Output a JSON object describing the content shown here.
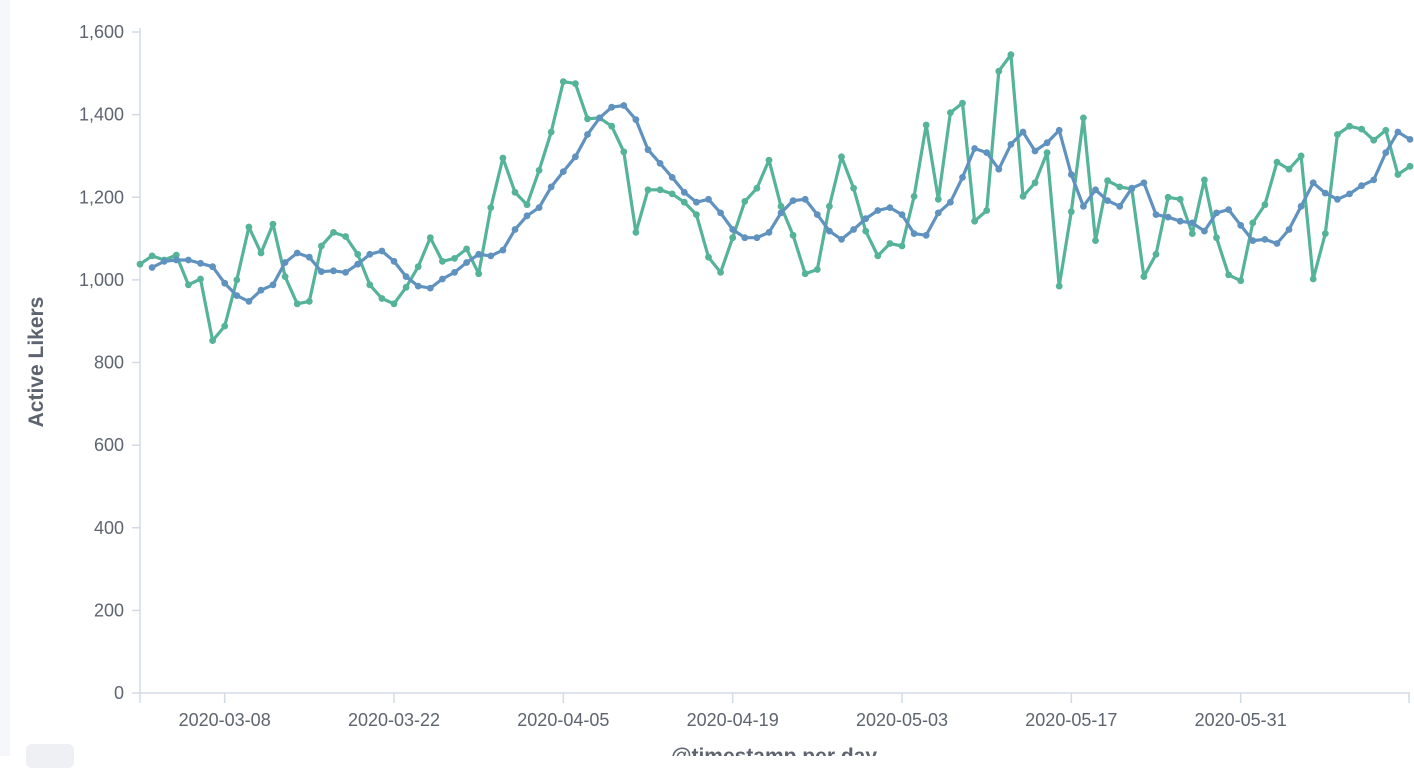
{
  "chart_data": {
    "type": "line",
    "xlabel": "@timestamp per day",
    "ylabel": "Active Likers",
    "ylim": [
      0,
      1600
    ],
    "y_ticks": [
      0,
      200,
      400,
      600,
      800,
      1000,
      1200,
      1400,
      1600
    ],
    "y_tick_labels": [
      "0",
      "200",
      "400",
      "600",
      "800",
      "1,000",
      "1,200",
      "1,400",
      "1,600"
    ],
    "x_range": [
      "2020-03-01",
      "2020-06-14"
    ],
    "x_ticks": [
      "2020-03-08",
      "2020-03-22",
      "2020-04-05",
      "2020-04-19",
      "2020-05-03",
      "2020-05-17",
      "2020-05-31"
    ],
    "grid": false,
    "legend": "none",
    "series": [
      {
        "color": "#54b399",
        "points": [
          [
            "2020-03-01",
            1038
          ],
          [
            "2020-03-02",
            1058
          ],
          [
            "2020-03-03",
            1048
          ],
          [
            "2020-03-04",
            1060
          ],
          [
            "2020-03-05",
            988
          ],
          [
            "2020-03-06",
            1002
          ],
          [
            "2020-03-07",
            853
          ],
          [
            "2020-03-08",
            888
          ],
          [
            "2020-03-09",
            1000
          ],
          [
            "2020-03-10",
            1128
          ],
          [
            "2020-03-11",
            1065
          ],
          [
            "2020-03-12",
            1135
          ],
          [
            "2020-03-13",
            1008
          ],
          [
            "2020-03-14",
            942
          ],
          [
            "2020-03-15",
            948
          ],
          [
            "2020-03-16",
            1082
          ],
          [
            "2020-03-17",
            1115
          ],
          [
            "2020-03-18",
            1105
          ],
          [
            "2020-03-19",
            1062
          ],
          [
            "2020-03-20",
            988
          ],
          [
            "2020-03-21",
            955
          ],
          [
            "2020-03-22",
            942
          ],
          [
            "2020-03-23",
            982
          ],
          [
            "2020-03-24",
            1032
          ],
          [
            "2020-03-25",
            1102
          ],
          [
            "2020-03-26",
            1045
          ],
          [
            "2020-03-27",
            1052
          ],
          [
            "2020-03-28",
            1075
          ],
          [
            "2020-03-29",
            1015
          ],
          [
            "2020-03-30",
            1175
          ],
          [
            "2020-03-31",
            1295
          ],
          [
            "2020-04-01",
            1212
          ],
          [
            "2020-04-02",
            1182
          ],
          [
            "2020-04-03",
            1265
          ],
          [
            "2020-04-04",
            1358
          ],
          [
            "2020-04-05",
            1480
          ],
          [
            "2020-04-06",
            1475
          ],
          [
            "2020-04-07",
            1390
          ],
          [
            "2020-04-08",
            1392
          ],
          [
            "2020-04-09",
            1372
          ],
          [
            "2020-04-10",
            1310
          ],
          [
            "2020-04-11",
            1115
          ],
          [
            "2020-04-12",
            1218
          ],
          [
            "2020-04-13",
            1218
          ],
          [
            "2020-04-14",
            1208
          ],
          [
            "2020-04-15",
            1188
          ],
          [
            "2020-04-16",
            1158
          ],
          [
            "2020-04-17",
            1055
          ],
          [
            "2020-04-18",
            1018
          ],
          [
            "2020-04-19",
            1102
          ],
          [
            "2020-04-20",
            1190
          ],
          [
            "2020-04-21",
            1222
          ],
          [
            "2020-04-22",
            1290
          ],
          [
            "2020-04-23",
            1178
          ],
          [
            "2020-04-24",
            1108
          ],
          [
            "2020-04-25",
            1015
          ],
          [
            "2020-04-26",
            1025
          ],
          [
            "2020-04-27",
            1178
          ],
          [
            "2020-04-28",
            1298
          ],
          [
            "2020-04-29",
            1222
          ],
          [
            "2020-04-30",
            1118
          ],
          [
            "2020-05-01",
            1058
          ],
          [
            "2020-05-02",
            1088
          ],
          [
            "2020-05-03",
            1082
          ],
          [
            "2020-05-04",
            1202
          ],
          [
            "2020-05-05",
            1375
          ],
          [
            "2020-05-06",
            1195
          ],
          [
            "2020-05-07",
            1405
          ],
          [
            "2020-05-08",
            1428
          ],
          [
            "2020-05-09",
            1142
          ],
          [
            "2020-05-10",
            1168
          ],
          [
            "2020-05-11",
            1505
          ],
          [
            "2020-05-12",
            1545
          ],
          [
            "2020-05-13",
            1202
          ],
          [
            "2020-05-14",
            1235
          ],
          [
            "2020-05-15",
            1308
          ],
          [
            "2020-05-16",
            985
          ],
          [
            "2020-05-17",
            1165
          ],
          [
            "2020-05-18",
            1392
          ],
          [
            "2020-05-19",
            1095
          ],
          [
            "2020-05-20",
            1240
          ],
          [
            "2020-05-21",
            1225
          ],
          [
            "2020-05-22",
            1220
          ],
          [
            "2020-05-23",
            1008
          ],
          [
            "2020-05-24",
            1062
          ],
          [
            "2020-05-25",
            1200
          ],
          [
            "2020-05-26",
            1195
          ],
          [
            "2020-05-27",
            1112
          ],
          [
            "2020-05-28",
            1242
          ],
          [
            "2020-05-29",
            1102
          ],
          [
            "2020-05-30",
            1012
          ],
          [
            "2020-05-31",
            998
          ],
          [
            "2020-06-01",
            1138
          ],
          [
            "2020-06-02",
            1182
          ],
          [
            "2020-06-03",
            1285
          ],
          [
            "2020-06-04",
            1268
          ],
          [
            "2020-06-05",
            1300
          ],
          [
            "2020-06-06",
            1002
          ],
          [
            "2020-06-07",
            1112
          ],
          [
            "2020-06-08",
            1352
          ],
          [
            "2020-06-09",
            1372
          ],
          [
            "2020-06-10",
            1365
          ],
          [
            "2020-06-11",
            1338
          ],
          [
            "2020-06-12",
            1362
          ],
          [
            "2020-06-13",
            1255
          ],
          [
            "2020-06-14",
            1275
          ]
        ]
      },
      {
        "color": "#6092c0",
        "points": [
          [
            "2020-03-02",
            1030
          ],
          [
            "2020-03-03",
            1045
          ],
          [
            "2020-03-04",
            1048
          ],
          [
            "2020-03-05",
            1048
          ],
          [
            "2020-03-06",
            1040
          ],
          [
            "2020-03-07",
            1032
          ],
          [
            "2020-03-08",
            992
          ],
          [
            "2020-03-09",
            962
          ],
          [
            "2020-03-10",
            948
          ],
          [
            "2020-03-11",
            975
          ],
          [
            "2020-03-12",
            988
          ],
          [
            "2020-03-13",
            1042
          ],
          [
            "2020-03-14",
            1065
          ],
          [
            "2020-03-15",
            1055
          ],
          [
            "2020-03-16",
            1020
          ],
          [
            "2020-03-17",
            1022
          ],
          [
            "2020-03-18",
            1018
          ],
          [
            "2020-03-19",
            1038
          ],
          [
            "2020-03-20",
            1062
          ],
          [
            "2020-03-21",
            1070
          ],
          [
            "2020-03-22",
            1045
          ],
          [
            "2020-03-23",
            1008
          ],
          [
            "2020-03-24",
            985
          ],
          [
            "2020-03-25",
            980
          ],
          [
            "2020-03-26",
            1002
          ],
          [
            "2020-03-27",
            1018
          ],
          [
            "2020-03-28",
            1042
          ],
          [
            "2020-03-29",
            1062
          ],
          [
            "2020-03-30",
            1058
          ],
          [
            "2020-03-31",
            1072
          ],
          [
            "2020-04-01",
            1122
          ],
          [
            "2020-04-02",
            1155
          ],
          [
            "2020-04-03",
            1175
          ],
          [
            "2020-04-04",
            1225
          ],
          [
            "2020-04-05",
            1262
          ],
          [
            "2020-04-06",
            1298
          ],
          [
            "2020-04-07",
            1352
          ],
          [
            "2020-04-08",
            1392
          ],
          [
            "2020-04-09",
            1418
          ],
          [
            "2020-04-10",
            1422
          ],
          [
            "2020-04-11",
            1388
          ],
          [
            "2020-04-12",
            1315
          ],
          [
            "2020-04-13",
            1282
          ],
          [
            "2020-04-14",
            1248
          ],
          [
            "2020-04-15",
            1212
          ],
          [
            "2020-04-16",
            1188
          ],
          [
            "2020-04-17",
            1195
          ],
          [
            "2020-04-18",
            1162
          ],
          [
            "2020-04-19",
            1122
          ],
          [
            "2020-04-20",
            1102
          ],
          [
            "2020-04-21",
            1102
          ],
          [
            "2020-04-22",
            1115
          ],
          [
            "2020-04-23",
            1162
          ],
          [
            "2020-04-24",
            1192
          ],
          [
            "2020-04-25",
            1195
          ],
          [
            "2020-04-26",
            1158
          ],
          [
            "2020-04-27",
            1118
          ],
          [
            "2020-04-28",
            1098
          ],
          [
            "2020-04-29",
            1122
          ],
          [
            "2020-04-30",
            1148
          ],
          [
            "2020-05-01",
            1168
          ],
          [
            "2020-05-02",
            1175
          ],
          [
            "2020-05-03",
            1158
          ],
          [
            "2020-05-04",
            1112
          ],
          [
            "2020-05-05",
            1108
          ],
          [
            "2020-05-06",
            1162
          ],
          [
            "2020-05-07",
            1188
          ],
          [
            "2020-05-08",
            1248
          ],
          [
            "2020-05-09",
            1318
          ],
          [
            "2020-05-10",
            1308
          ],
          [
            "2020-05-11",
            1268
          ],
          [
            "2020-05-12",
            1328
          ],
          [
            "2020-05-13",
            1358
          ],
          [
            "2020-05-14",
            1312
          ],
          [
            "2020-05-15",
            1332
          ],
          [
            "2020-05-16",
            1362
          ],
          [
            "2020-05-17",
            1255
          ],
          [
            "2020-05-18",
            1178
          ],
          [
            "2020-05-19",
            1218
          ],
          [
            "2020-05-20",
            1192
          ],
          [
            "2020-05-21",
            1178
          ],
          [
            "2020-05-22",
            1222
          ],
          [
            "2020-05-23",
            1235
          ],
          [
            "2020-05-24",
            1158
          ],
          [
            "2020-05-25",
            1152
          ],
          [
            "2020-05-26",
            1142
          ],
          [
            "2020-05-27",
            1138
          ],
          [
            "2020-05-28",
            1118
          ],
          [
            "2020-05-29",
            1162
          ],
          [
            "2020-05-30",
            1170
          ],
          [
            "2020-05-31",
            1132
          ],
          [
            "2020-06-01",
            1095
          ],
          [
            "2020-06-02",
            1098
          ],
          [
            "2020-06-03",
            1088
          ],
          [
            "2020-06-04",
            1122
          ],
          [
            "2020-06-05",
            1178
          ],
          [
            "2020-06-06",
            1235
          ],
          [
            "2020-06-07",
            1210
          ],
          [
            "2020-06-08",
            1195
          ],
          [
            "2020-06-09",
            1208
          ],
          [
            "2020-06-10",
            1228
          ],
          [
            "2020-06-11",
            1242
          ],
          [
            "2020-06-12",
            1308
          ],
          [
            "2020-06-13",
            1358
          ],
          [
            "2020-06-14",
            1340
          ]
        ]
      }
    ]
  }
}
